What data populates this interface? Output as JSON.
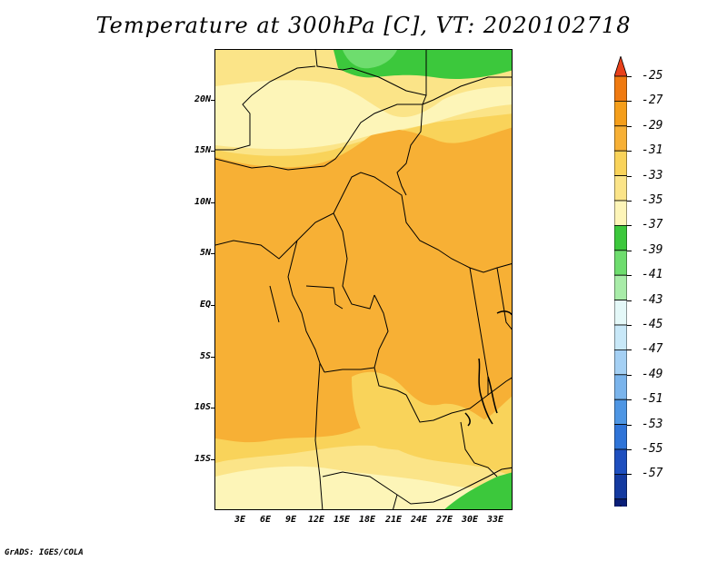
{
  "title": "Temperature at 300hPa [C], VT: 2020102718",
  "footer": "GrADS: IGES/COLA",
  "map": {
    "region": "Central Africa",
    "lat_labels": [
      "20N",
      "15N",
      "10N",
      "5N",
      "EQ",
      "5S",
      "10S",
      "15S"
    ],
    "lon_labels": [
      "3E",
      "6E",
      "9E",
      "12E",
      "15E",
      "18E",
      "21E",
      "24E",
      "27E",
      "30E",
      "33E"
    ]
  },
  "colorbar": {
    "labels": [
      "-25",
      "-27",
      "-29",
      "-31",
      "-33",
      "-35",
      "-37",
      "-39",
      "-41",
      "-43",
      "-45",
      "-47",
      "-49",
      "-51",
      "-53",
      "-55",
      "-57"
    ],
    "colors": [
      "#e8401a",
      "#f07a10",
      "#f59e1a",
      "#f7b035",
      "#f9d35a",
      "#fbe488",
      "#fdf5b8",
      "#3cc83c",
      "#6edd6e",
      "#a8eca8",
      "#e4f8f8",
      "#c8e8f8",
      "#a4d0f4",
      "#7ab4ec",
      "#4e96e4",
      "#2f74d8",
      "#1e4fbf",
      "#143aa0",
      "#0a1f78",
      "#dfe4f5"
    ]
  }
}
